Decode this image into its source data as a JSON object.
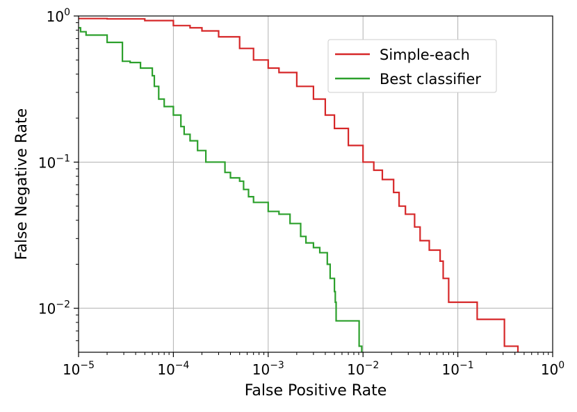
{
  "chart_data": {
    "type": "line",
    "xlabel": "False Positive Rate",
    "ylabel": "False Negative Rate",
    "xscale": "log",
    "yscale": "log",
    "xlim": [
      1e-05,
      1
    ],
    "ylim": [
      0.005,
      1
    ],
    "grid": true,
    "legend_position": "upper-right",
    "x_ticks": [
      {
        "value": 1e-05,
        "base": "10",
        "exp": "−5"
      },
      {
        "value": 0.0001,
        "base": "10",
        "exp": "−4"
      },
      {
        "value": 0.001,
        "base": "10",
        "exp": "−3"
      },
      {
        "value": 0.01,
        "base": "10",
        "exp": "−2"
      },
      {
        "value": 0.1,
        "base": "10",
        "exp": "−1"
      },
      {
        "value": 1,
        "base": "10",
        "exp": "0"
      }
    ],
    "y_ticks": [
      {
        "value": 0.01,
        "base": "10",
        "exp": "−2"
      },
      {
        "value": 0.1,
        "base": "10",
        "exp": "−1"
      },
      {
        "value": 1,
        "base": "10",
        "exp": "0"
      }
    ],
    "series": [
      {
        "name": "Simple-each",
        "color": "#d62728",
        "points": [
          [
            1e-05,
            0.96
          ],
          [
            2e-05,
            0.955
          ],
          [
            5e-05,
            0.93
          ],
          [
            0.0001,
            0.86
          ],
          [
            0.00015,
            0.83
          ],
          [
            0.0002,
            0.79
          ],
          [
            0.0003,
            0.72
          ],
          [
            0.0005,
            0.6
          ],
          [
            0.0007,
            0.5
          ],
          [
            0.001,
            0.44
          ],
          [
            0.0013,
            0.41
          ],
          [
            0.002,
            0.33
          ],
          [
            0.003,
            0.27
          ],
          [
            0.004,
            0.21
          ],
          [
            0.005,
            0.17
          ],
          [
            0.007,
            0.13
          ],
          [
            0.01,
            0.1
          ],
          [
            0.013,
            0.088
          ],
          [
            0.016,
            0.076
          ],
          [
            0.021,
            0.062
          ],
          [
            0.024,
            0.05
          ],
          [
            0.028,
            0.044
          ],
          [
            0.035,
            0.036
          ],
          [
            0.04,
            0.029
          ],
          [
            0.05,
            0.025
          ],
          [
            0.065,
            0.021
          ],
          [
            0.07,
            0.016
          ],
          [
            0.08,
            0.011
          ],
          [
            0.15,
            0.011
          ],
          [
            0.16,
            0.0084
          ],
          [
            0.3,
            0.0084
          ],
          [
            0.31,
            0.0055
          ],
          [
            0.43,
            0.0055
          ],
          [
            0.43,
            0.005
          ]
        ]
      },
      {
        "name": "Best classifier",
        "color": "#2ca02c",
        "points": [
          [
            1e-05,
            0.83
          ],
          [
            1.05e-05,
            0.78
          ],
          [
            1.2e-05,
            0.74
          ],
          [
            1.8e-05,
            0.74
          ],
          [
            2e-05,
            0.66
          ],
          [
            2.8e-05,
            0.66
          ],
          [
            2.9e-05,
            0.49
          ],
          [
            3.5e-05,
            0.48
          ],
          [
            4.5e-05,
            0.44
          ],
          [
            6e-05,
            0.39
          ],
          [
            6.3e-05,
            0.33
          ],
          [
            7e-05,
            0.27
          ],
          [
            8e-05,
            0.24
          ],
          [
            0.0001,
            0.21
          ],
          [
            0.00012,
            0.175
          ],
          [
            0.00013,
            0.155
          ],
          [
            0.00015,
            0.14
          ],
          [
            0.00018,
            0.12
          ],
          [
            0.00022,
            0.1
          ],
          [
            0.0003,
            0.1
          ],
          [
            0.00035,
            0.085
          ],
          [
            0.0004,
            0.078
          ],
          [
            0.0005,
            0.074
          ],
          [
            0.00055,
            0.065
          ],
          [
            0.00062,
            0.058
          ],
          [
            0.0007,
            0.053
          ],
          [
            0.001,
            0.046
          ],
          [
            0.0013,
            0.044
          ],
          [
            0.0017,
            0.038
          ],
          [
            0.002,
            0.038
          ],
          [
            0.0022,
            0.031
          ],
          [
            0.0025,
            0.028
          ],
          [
            0.003,
            0.026
          ],
          [
            0.0035,
            0.024
          ],
          [
            0.0042,
            0.02
          ],
          [
            0.0045,
            0.016
          ],
          [
            0.005,
            0.013
          ],
          [
            0.0051,
            0.011
          ],
          [
            0.0052,
            0.0082
          ],
          [
            0.009,
            0.0082
          ],
          [
            0.0091,
            0.0055
          ],
          [
            0.0097,
            0.0055
          ],
          [
            0.0097,
            0.005
          ]
        ]
      }
    ]
  }
}
